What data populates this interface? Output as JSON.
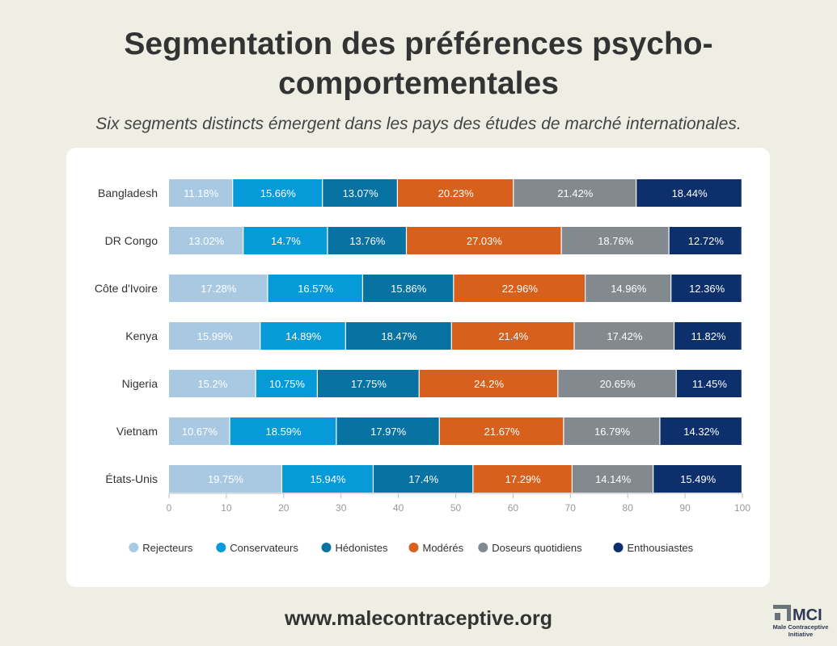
{
  "title": "Segmentation des préférences psycho-comportementales",
  "subtitle": "Six segments distincts émergent dans les pays des études de marché internationales.",
  "footer": {
    "url": "www.malecontraceptive.org"
  },
  "logo": {
    "abbr": "MCI",
    "line1": "Male Contraceptive",
    "line2": "Initiative"
  },
  "colors": {
    "series": [
      "#a9c9e3",
      "#069bd8",
      "#0873a3",
      "#d7601c",
      "#828a90",
      "#0d2f6c"
    ],
    "text_dark": "#333333",
    "axis": "#bdbdbd"
  },
  "chart_data": {
    "type": "bar",
    "orientation": "horizontal",
    "stacked": true,
    "categories": [
      "Bangladesh",
      "DR Congo",
      "Côte d'Ivoire",
      "Kenya",
      "Nigeria",
      "Vietnam",
      "États-Unis"
    ],
    "series": [
      {
        "name": "Rejecteurs",
        "values": [
          11.18,
          13.02,
          17.28,
          15.99,
          15.2,
          10.67,
          19.75
        ]
      },
      {
        "name": "Conservateurs",
        "values": [
          15.66,
          14.7,
          16.57,
          14.89,
          10.75,
          18.59,
          15.94
        ]
      },
      {
        "name": "Hédonistes",
        "values": [
          13.07,
          13.76,
          15.86,
          18.47,
          17.75,
          17.97,
          17.4
        ]
      },
      {
        "name": "Modérés",
        "values": [
          20.23,
          27.03,
          22.96,
          21.4,
          24.2,
          21.67,
          17.29
        ]
      },
      {
        "name": "Doseurs quotidiens",
        "values": [
          21.42,
          18.76,
          14.96,
          17.42,
          20.65,
          16.79,
          14.14
        ]
      },
      {
        "name": "Enthousiastes",
        "values": [
          18.44,
          12.72,
          12.36,
          11.82,
          11.45,
          14.32,
          15.49
        ]
      }
    ],
    "value_labels": [
      [
        "11.18%",
        "15.66%",
        "13.07%",
        "20.23%",
        "21.42%",
        "18.44%"
      ],
      [
        "13.02%",
        "14.7%",
        "13.76%",
        "27.03%",
        "18.76%",
        "12.72%"
      ],
      [
        "17.28%",
        "16.57%",
        "15.86%",
        "22.96%",
        "14.96%",
        "12.36%"
      ],
      [
        "15.99%",
        "14.89%",
        "18.47%",
        "21.4%",
        "17.42%",
        "11.82%"
      ],
      [
        "15.2%",
        "10.75%",
        "17.75%",
        "24.2%",
        "20.65%",
        "11.45%"
      ],
      [
        "10.67%",
        "18.59%",
        "17.97%",
        "21.67%",
        "16.79%",
        "14.32%"
      ],
      [
        "19.75%",
        "15.94%",
        "17.4%",
        "17.29%",
        "14.14%",
        "15.49%"
      ]
    ],
    "xlim": [
      0,
      100
    ],
    "xticks": [
      0,
      10,
      20,
      30,
      40,
      50,
      60,
      70,
      80,
      90,
      100
    ],
    "xlabel": "",
    "ylabel": "",
    "grid": false,
    "legend": "bottom-center"
  }
}
